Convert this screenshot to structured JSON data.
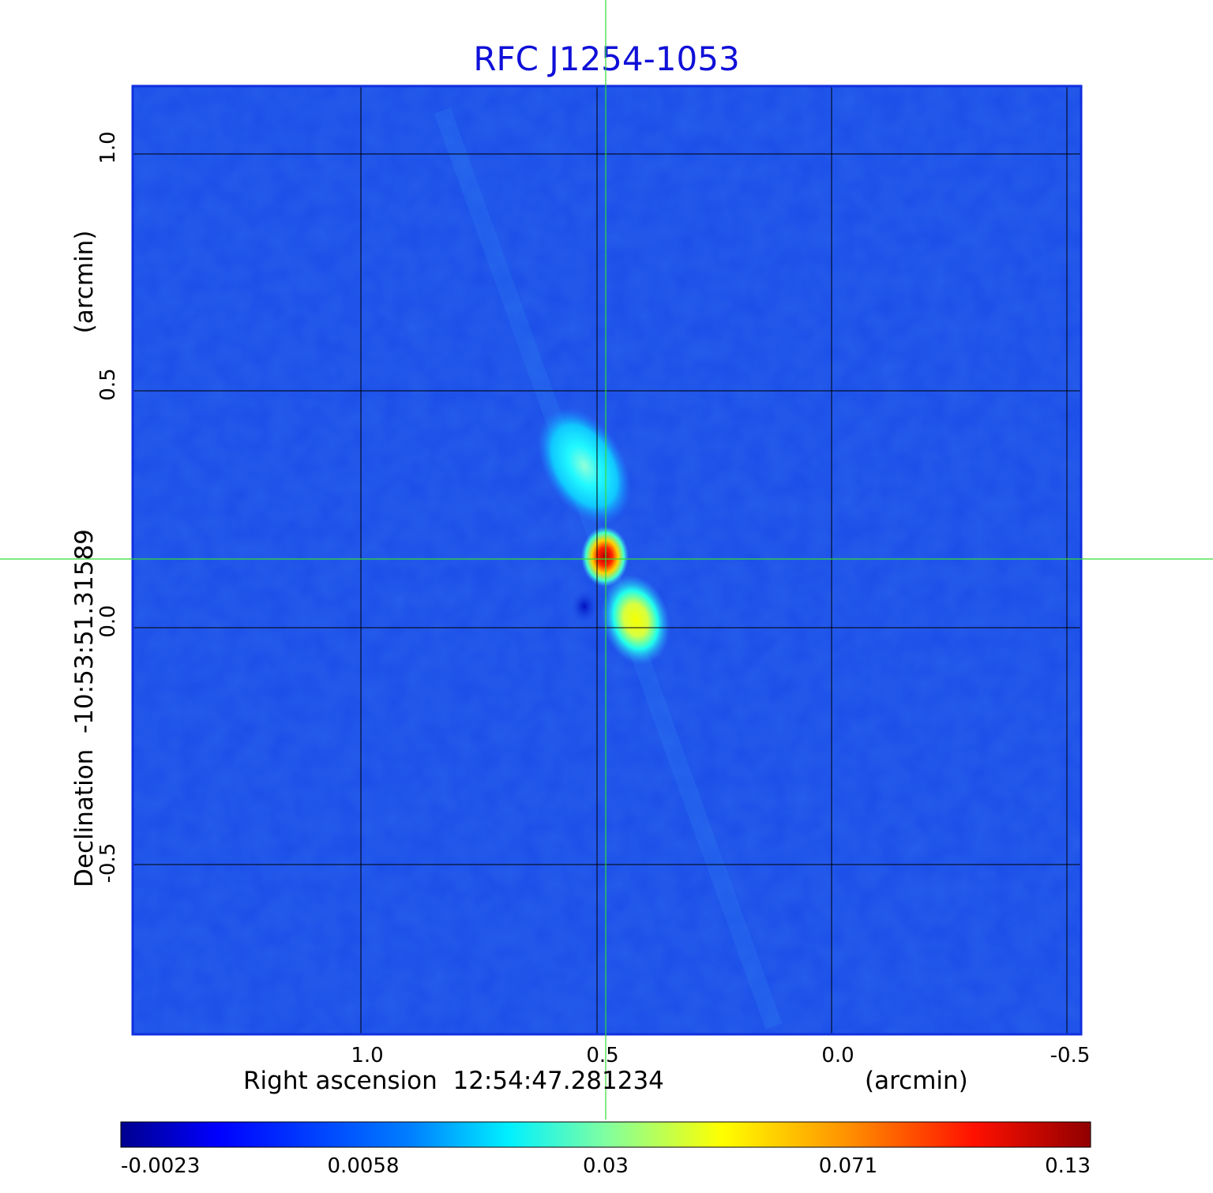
{
  "title": "RFC J1254-1053",
  "x_axis": {
    "label": "Right ascension  12:54:47.281234",
    "unit": "(arcmin)",
    "ticks": [
      "1.0",
      "0.5",
      "0.0",
      "-0.5"
    ]
  },
  "y_axis": {
    "label": "Declination  -10:53:51.31589",
    "unit": "(arcmin)",
    "ticks": [
      "1.0",
      "0.5",
      "0.0",
      "-0.5"
    ]
  },
  "colorbar": {
    "ticks": [
      "-0.0023",
      "0.0058",
      "0.03",
      "0.071",
      "0.13"
    ],
    "colormap": "jet"
  },
  "colors": {
    "title": "#1010d8",
    "background_map": "#1a4de8",
    "crosshair": "#33dd33",
    "grid": "#000000"
  }
}
